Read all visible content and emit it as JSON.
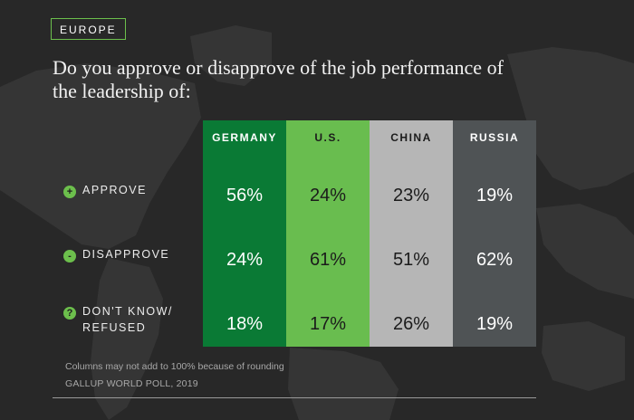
{
  "region": "EUROPE",
  "question": "Do you approve or disapprove of the job performance of the leadership of:",
  "colors": {
    "background": "#282828",
    "map_land": "#353535",
    "accent": "#6cbf4c",
    "columns": [
      "#0a7a35",
      "#69bd4f",
      "#b6b6b6",
      "#4f5355"
    ],
    "column_text": [
      "#ffffff",
      "#1b1b1b",
      "#1b1b1b",
      "#ffffff"
    ]
  },
  "chart_data": {
    "type": "table",
    "columns": [
      "GERMANY",
      "U.S.",
      "CHINA",
      "RUSSIA"
    ],
    "rows": [
      {
        "icon": "+",
        "label_lines": [
          "APPROVE"
        ],
        "values": [
          "56%",
          "24%",
          "23%",
          "19%"
        ]
      },
      {
        "icon": "-",
        "label_lines": [
          "DISAPPROVE"
        ],
        "values": [
          "24%",
          "61%",
          "51%",
          "62%"
        ]
      },
      {
        "icon": "?",
        "label_lines": [
          "DON'T KNOW/",
          "REFUSED"
        ],
        "values": [
          "18%",
          "17%",
          "26%",
          "19%"
        ]
      }
    ]
  },
  "footnote": "Columns may not add to 100% because of rounding",
  "source": "GALLUP WORLD POLL, 2019"
}
